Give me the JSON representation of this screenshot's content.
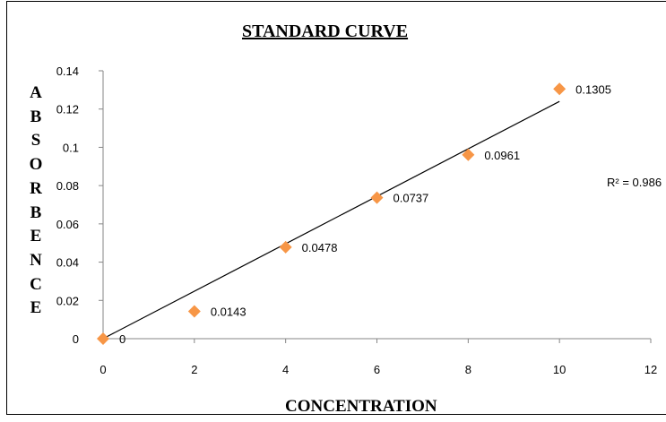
{
  "chart_data": {
    "type": "scatter",
    "title": "STANDARD CURVE",
    "xlabel": "CONCENTRATION",
    "ylabel": "ABSORBENCE",
    "xlim": [
      0,
      12
    ],
    "ylim": [
      0,
      0.14
    ],
    "x_ticks": [
      "0",
      "2",
      "4",
      "6",
      "8",
      "10",
      "12"
    ],
    "y_ticks": [
      "0",
      "0.02",
      "0.04",
      "0.06",
      "0.08",
      "0.1",
      "0.12",
      "0.14"
    ],
    "grid": false,
    "legend": "none",
    "marker_color": "#F79646",
    "line_color": "#000000",
    "series": [
      {
        "x": [
          0,
          2,
          4,
          6,
          8,
          10
        ],
        "y": [
          0,
          0.0143,
          0.0478,
          0.0737,
          0.0961,
          0.1305
        ],
        "data_labels": [
          "0",
          "0.0143",
          "0.0478",
          "0.0737",
          "0.0961",
          "0.1305"
        ]
      }
    ],
    "trendline": {
      "type": "linear",
      "slope": 0.0124,
      "intercept": 0,
      "x_range": [
        0,
        10
      ],
      "r2_label": "R² = 0.986"
    }
  }
}
